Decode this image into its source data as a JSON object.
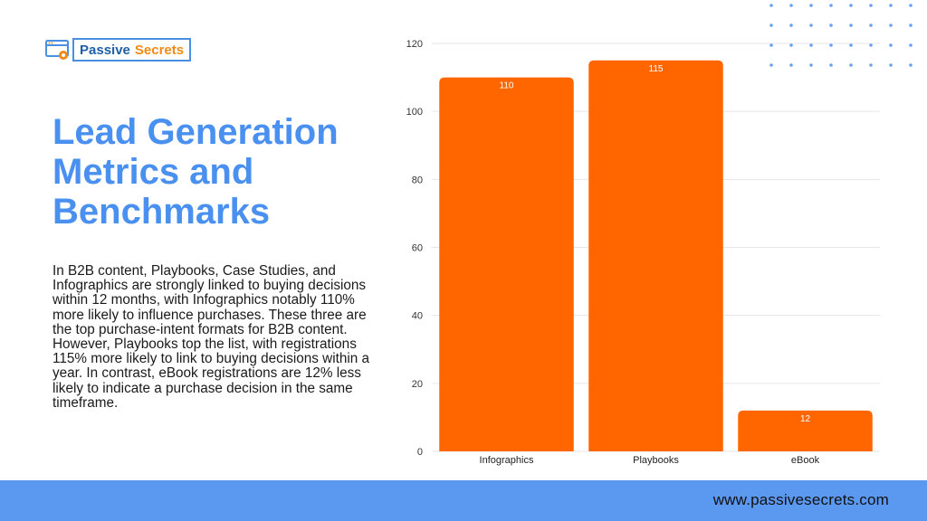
{
  "brand": {
    "word1": "Passive",
    "word2": "Secrets",
    "logo_icon": "browser-gear-icon"
  },
  "title": "Lead Generation Metrics and Benchmarks",
  "body": {
    "paragraph1": "In B2B content, Playbooks, Case Studies, and Infographics are strongly linked to buying decisions within 12 months, with Infographics notably 110% more likely to influence purchases. These three are the top purchase-intent formats for B2B content.",
    "paragraph2": "However, Playbooks top the list, with registrations 115% more likely to link to buying decisions within a year. In contrast, eBook registrations are 12% less likely to indicate a purchase decision in the same timeframe."
  },
  "footer": {
    "url": "www.passivesecrets.com"
  },
  "colors": {
    "bar": "#ff6600",
    "title": "#4a90f0",
    "footer": "#5b98f0",
    "dots": "#6aa2f2"
  },
  "chart_data": {
    "type": "bar",
    "categories": [
      "Infographics",
      "Playbooks",
      "eBook"
    ],
    "values": [
      110,
      115,
      12
    ],
    "data_labels": [
      "110",
      "115",
      "12"
    ],
    "ylim": [
      0,
      120
    ],
    "yticks": [
      0,
      20,
      40,
      60,
      80,
      100,
      120
    ],
    "title": "",
    "xlabel": "",
    "ylabel": "",
    "grid": true,
    "legend": "none"
  }
}
